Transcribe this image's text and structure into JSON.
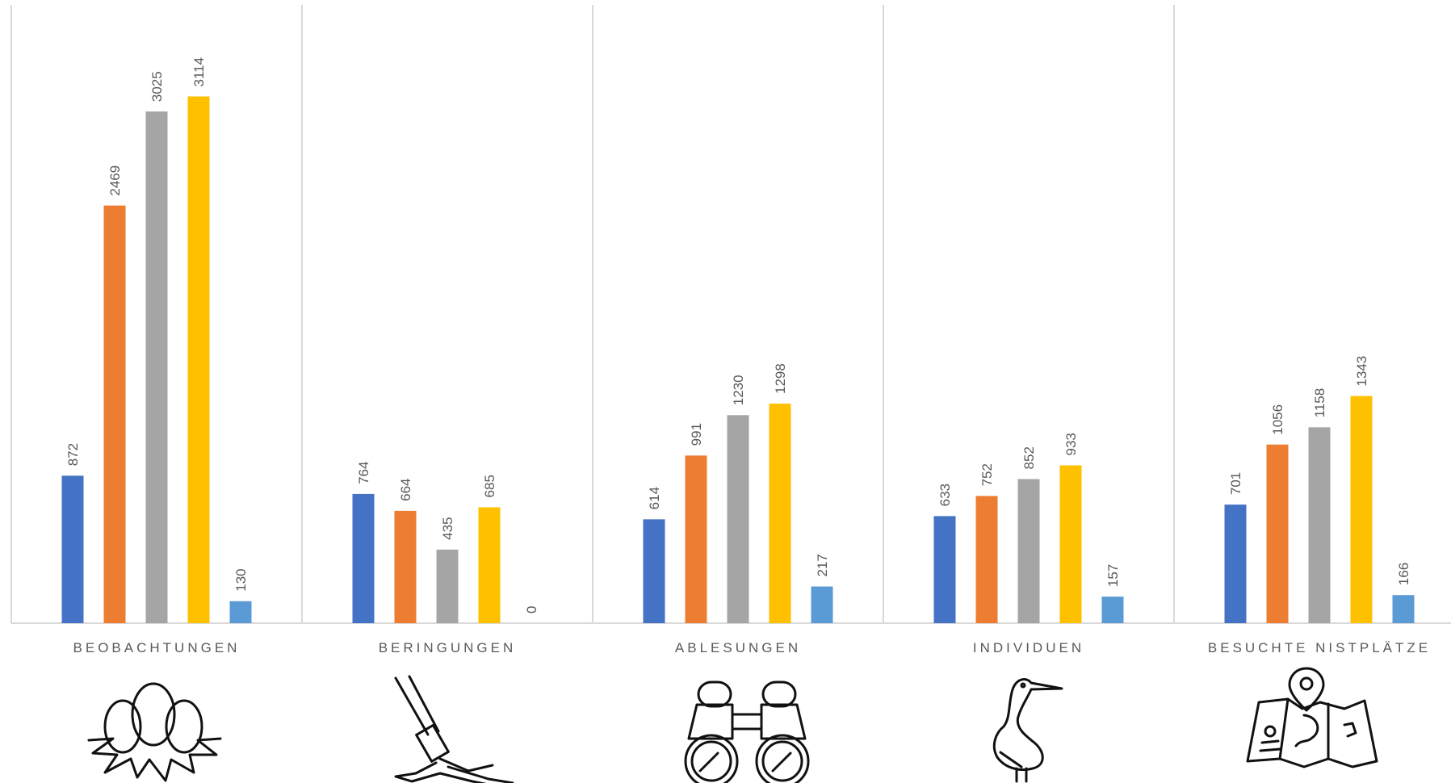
{
  "chart_data": {
    "type": "bar",
    "categories": [
      "BEOBACHTUNGEN",
      "BERINGUNGEN",
      "ABLESUNGEN",
      "INDIVIDUEN",
      "BESUCHTE NISTPLÄTZE"
    ],
    "series": [
      {
        "values": [
          872,
          764,
          614,
          633,
          701
        ],
        "color": "#4472C4"
      },
      {
        "values": [
          2469,
          664,
          991,
          752,
          1056
        ],
        "color": "#ED7D31"
      },
      {
        "values": [
          3025,
          435,
          1230,
          852,
          1158
        ],
        "color": "#A5A5A5"
      },
      {
        "values": [
          3114,
          685,
          1298,
          933,
          1343
        ],
        "color": "#FFC000"
      },
      {
        "values": [
          130,
          0,
          217,
          157,
          166
        ],
        "color": "#5B9BD5"
      }
    ],
    "ylim": [
      0,
      3500
    ],
    "grid": false,
    "legend": "none",
    "icons": [
      "eggs-nest-icon",
      "ringing-pliers-icon",
      "binoculars-icon",
      "stork-icon",
      "map-pin-icon"
    ]
  }
}
